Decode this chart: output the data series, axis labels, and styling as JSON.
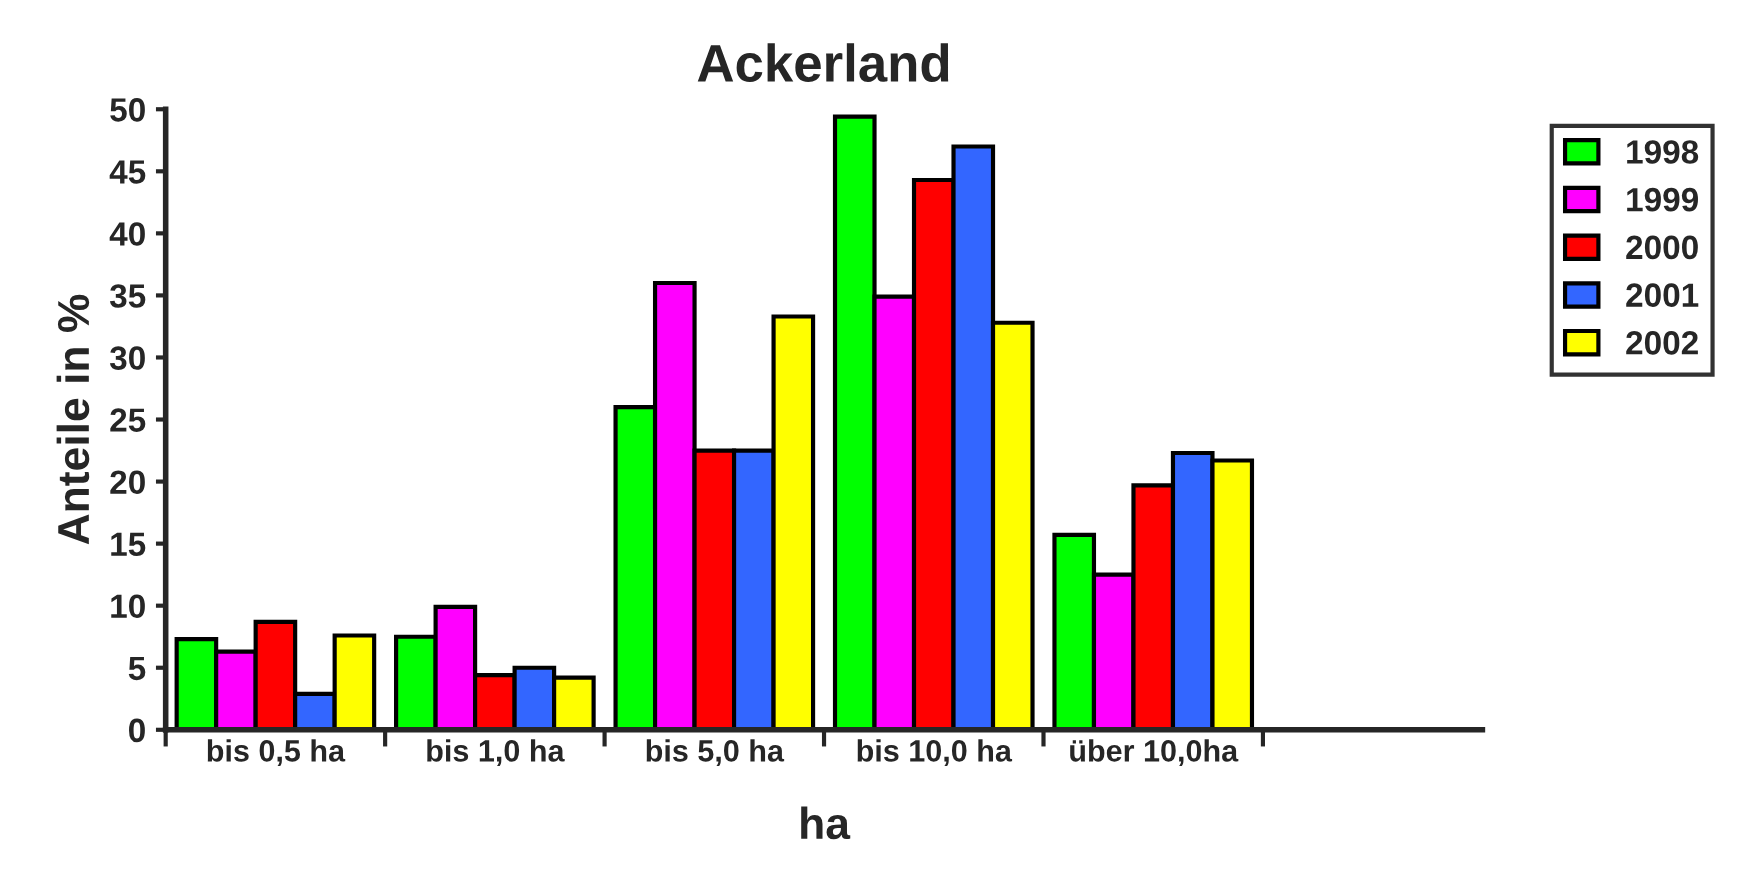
{
  "chart_data": {
    "type": "bar",
    "title": "Ackerland",
    "xlabel": "ha",
    "ylabel": "Anteile in %",
    "categories": [
      "bis 0,5 ha",
      "bis 1,0 ha",
      "bis 5,0 ha",
      "bis 10,0 ha",
      "über 10,0ha",
      null
    ],
    "series": [
      {
        "name": "1998",
        "color": "#00ff00",
        "values": [
          7.3,
          7.5,
          26.0,
          49.4,
          15.7,
          null
        ]
      },
      {
        "name": "1999",
        "color": "#ff00ff",
        "values": [
          6.3,
          9.9,
          36.0,
          34.9,
          12.5,
          null
        ]
      },
      {
        "name": "2000",
        "color": "#ff0000",
        "values": [
          8.7,
          4.4,
          22.5,
          44.3,
          19.7,
          null
        ]
      },
      {
        "name": "2001",
        "color": "#3366ff",
        "values": [
          2.9,
          5.0,
          22.5,
          47.0,
          22.3,
          null
        ]
      },
      {
        "name": "2002",
        "color": "#ffff00",
        "values": [
          7.6,
          4.2,
          33.3,
          32.8,
          21.7,
          null
        ]
      }
    ],
    "ylim": [
      0,
      50
    ],
    "yticks": [
      0,
      5,
      10,
      15,
      20,
      25,
      30,
      35,
      40,
      45,
      50
    ],
    "grid": false,
    "legend": "right"
  }
}
